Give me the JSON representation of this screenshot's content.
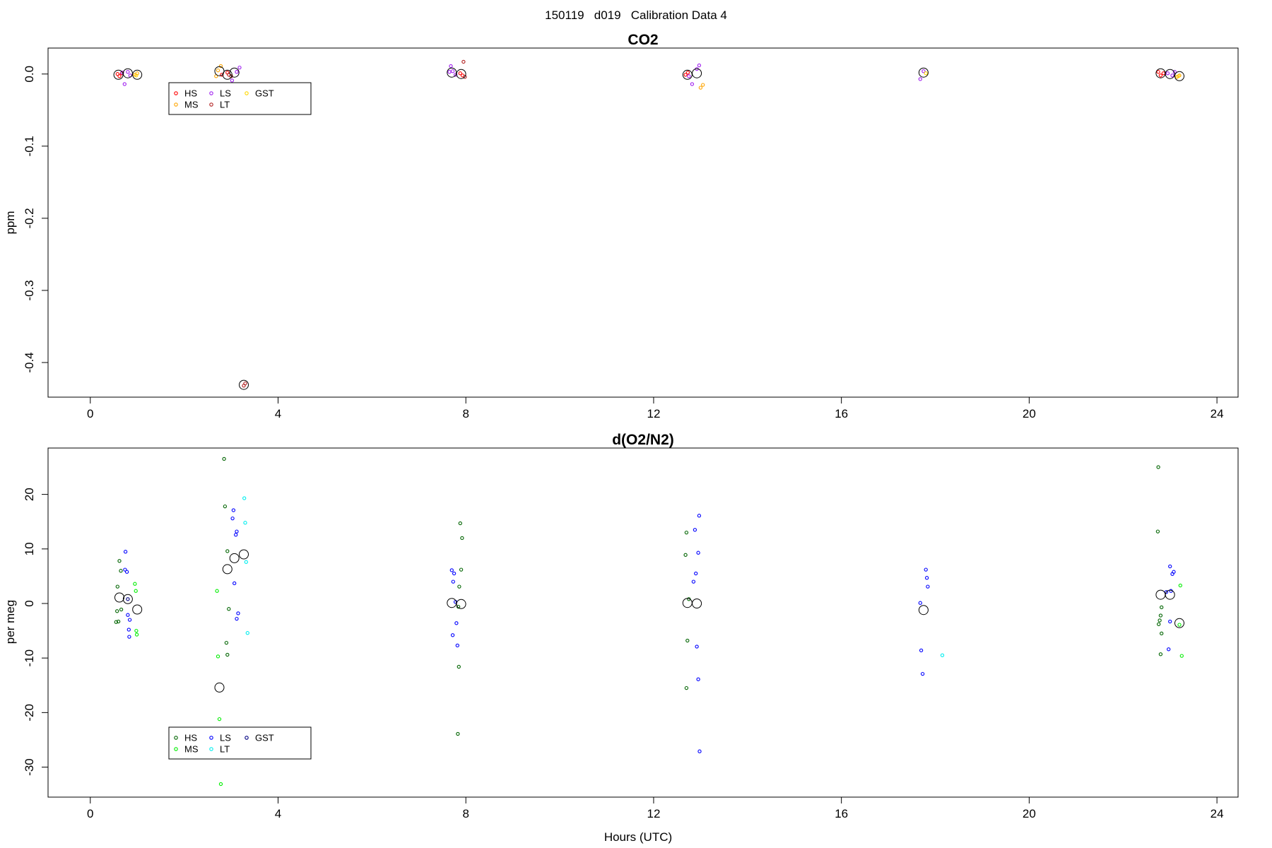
{
  "figure": {
    "suptitle": "150119   d019   Calibration Data 4",
    "xlabel": "Hours (UTC)"
  },
  "colors": {
    "HS_co2": "#ff0000",
    "MS_co2": "#ffa500",
    "LS_co2": "#a020f0",
    "LT_co2": "#b22222",
    "GST_co2": "#ffd700",
    "HS_o2": "#006400",
    "MS_o2": "#00ee00",
    "LS_o2": "#0000ff",
    "LT_o2": "#00eeee",
    "GST_o2": "#000080",
    "mean_marker": "#000000"
  },
  "chart_data": [
    {
      "type": "scatter",
      "title": "CO2",
      "xlabel": "",
      "ylabel": "ppm",
      "xlim": [
        -0.9,
        24.45
      ],
      "ylim": [
        -0.448,
        0.036
      ],
      "xticks": [
        0,
        4,
        8,
        12,
        16,
        20,
        24
      ],
      "yticks": [
        0.0,
        -0.1,
        -0.2,
        -0.3,
        -0.4
      ],
      "ytick_labels": [
        "0.0",
        "-0.1",
        "-0.2",
        "-0.3",
        "-0.4"
      ],
      "grid": false,
      "legend": {
        "position": "top-left",
        "entries": [
          "HS",
          "MS",
          "LS",
          "LT",
          "GST"
        ]
      },
      "series": [
        {
          "name": "HS",
          "points": [
            [
              0.58,
              0.0
            ],
            [
              0.62,
              -0.003
            ],
            [
              0.67,
              0.001
            ],
            [
              2.8,
              -0.001
            ],
            [
              2.92,
              0.002
            ],
            [
              7.88,
              0.001
            ],
            [
              7.93,
              -0.002
            ],
            [
              12.68,
              -0.001
            ],
            [
              12.73,
              0.002
            ],
            [
              22.75,
              0.003
            ],
            [
              22.8,
              -0.002
            ],
            [
              22.86,
              0.001
            ]
          ]
        },
        {
          "name": "MS",
          "points": [
            [
              0.95,
              -0.001
            ],
            [
              1.0,
              0.001
            ],
            [
              2.68,
              -0.003
            ],
            [
              2.72,
              0.005
            ],
            [
              2.78,
              0.011
            ],
            [
              13.0,
              -0.019
            ],
            [
              13.05,
              -0.015
            ],
            [
              23.15,
              -0.004
            ],
            [
              23.2,
              -0.002
            ]
          ]
        },
        {
          "name": "LS",
          "points": [
            [
              0.68,
              0.002
            ],
            [
              0.73,
              -0.014
            ],
            [
              0.8,
              0.003
            ],
            [
              0.85,
              -0.002
            ],
            [
              3.02,
              -0.009
            ],
            [
              3.12,
              0.003
            ],
            [
              3.18,
              0.009
            ],
            [
              7.65,
              0.003
            ],
            [
              7.68,
              0.011
            ],
            [
              7.72,
              0.004
            ],
            [
              7.78,
              -0.001
            ],
            [
              12.75,
              -0.003
            ],
            [
              12.82,
              -0.014
            ],
            [
              12.92,
              0.007
            ],
            [
              12.97,
              0.012
            ],
            [
              17.68,
              -0.007
            ],
            [
              17.75,
              0.004
            ],
            [
              22.95,
              0.001
            ],
            [
              23.05,
              -0.002
            ],
            [
              23.1,
              0.003
            ]
          ]
        },
        {
          "name": "LT",
          "points": [
            [
              2.95,
              -0.001
            ],
            [
              3.0,
              -0.003
            ],
            [
              3.27,
              -0.432
            ],
            [
              3.3,
              -0.429
            ],
            [
              7.95,
              0.017
            ],
            [
              7.98,
              -0.004
            ]
          ]
        },
        {
          "name": "GST",
          "points": [
            [
              0.98,
              -0.002
            ],
            [
              17.8,
              0.001
            ],
            [
              23.18,
              -0.003
            ]
          ]
        },
        {
          "name": "",
          "kind": "mean",
          "points": [
            [
              0.6,
              -0.001
            ],
            [
              0.8,
              0.001
            ],
            [
              1.0,
              -0.001
            ],
            [
              2.75,
              0.004
            ],
            [
              2.92,
              -0.001
            ],
            [
              3.07,
              0.002
            ],
            [
              3.27,
              -0.431
            ],
            [
              7.7,
              0.002
            ],
            [
              7.9,
              0.0
            ],
            [
              12.72,
              -0.001
            ],
            [
              12.92,
              0.001
            ],
            [
              17.75,
              0.002
            ],
            [
              22.8,
              0.001
            ],
            [
              23.0,
              0.0
            ],
            [
              23.2,
              -0.003
            ]
          ]
        }
      ]
    },
    {
      "type": "scatter",
      "title": "d(O2/N2)",
      "xlabel": "Hours (UTC)",
      "ylabel": "per meg",
      "xlim": [
        -0.9,
        24.45
      ],
      "ylim": [
        -35.5,
        28.5
      ],
      "xticks": [
        0,
        4,
        8,
        12,
        16,
        20,
        24
      ],
      "yticks": [
        20,
        10,
        0,
        -10,
        -20,
        -30
      ],
      "ytick_labels": [
        "20",
        "10",
        "0",
        "-10",
        "-20",
        "-30"
      ],
      "grid": false,
      "legend": {
        "position": "bottom-left",
        "entries": [
          "HS",
          "MS",
          "LS",
          "LT",
          "GST"
        ]
      },
      "series": [
        {
          "name": "HS",
          "points": [
            [
              0.58,
              3.1
            ],
            [
              0.62,
              7.8
            ],
            [
              0.65,
              6.0
            ],
            [
              0.57,
              -1.4
            ],
            [
              0.6,
              -3.3
            ],
            [
              0.66,
              -1.1
            ],
            [
              0.55,
              -3.4
            ],
            [
              2.85,
              26.5
            ],
            [
              2.87,
              17.8
            ],
            [
              2.92,
              9.6
            ],
            [
              2.95,
              -1.0
            ],
            [
              2.9,
              -7.2
            ],
            [
              2.92,
              -9.4
            ],
            [
              7.88,
              14.7
            ],
            [
              7.92,
              12.0
            ],
            [
              7.9,
              6.2
            ],
            [
              7.86,
              3.1
            ],
            [
              7.84,
              -0.6
            ],
            [
              7.85,
              -11.6
            ],
            [
              7.83,
              -23.9
            ],
            [
              12.7,
              13.0
            ],
            [
              12.68,
              8.9
            ],
            [
              12.75,
              0.8
            ],
            [
              12.72,
              -6.8
            ],
            [
              12.7,
              -15.5
            ],
            [
              22.75,
              25.0
            ],
            [
              22.74,
              13.2
            ],
            [
              22.82,
              -0.7
            ],
            [
              22.8,
              -2.2
            ],
            [
              22.78,
              -3.1
            ],
            [
              22.76,
              -3.8
            ],
            [
              22.82,
              -5.5
            ],
            [
              22.8,
              -9.3
            ]
          ]
        },
        {
          "name": "MS",
          "points": [
            [
              0.95,
              3.6
            ],
            [
              0.97,
              2.3
            ],
            [
              0.98,
              -5.0
            ],
            [
              0.99,
              -5.7
            ],
            [
              2.7,
              2.3
            ],
            [
              2.72,
              -9.7
            ],
            [
              2.75,
              -21.2
            ],
            [
              2.78,
              -33.1
            ],
            [
              23.22,
              3.3
            ],
            [
              23.25,
              -9.6
            ],
            [
              23.2,
              -3.9
            ]
          ]
        },
        {
          "name": "LS",
          "points": [
            [
              0.75,
              9.5
            ],
            [
              0.74,
              6.2
            ],
            [
              0.78,
              5.8
            ],
            [
              0.8,
              -2.1
            ],
            [
              0.84,
              -3.0
            ],
            [
              0.82,
              -4.8
            ],
            [
              0.83,
              -6.1
            ],
            [
              3.05,
              17.1
            ],
            [
              3.03,
              15.6
            ],
            [
              3.12,
              13.2
            ],
            [
              3.1,
              12.6
            ],
            [
              3.07,
              3.7
            ],
            [
              3.15,
              -1.8
            ],
            [
              3.12,
              -2.8
            ],
            [
              7.7,
              6.1
            ],
            [
              7.75,
              5.5
            ],
            [
              7.73,
              4.0
            ],
            [
              7.78,
              0.3
            ],
            [
              7.8,
              -3.6
            ],
            [
              7.72,
              -5.8
            ],
            [
              7.82,
              -7.7
            ],
            [
              12.88,
              13.5
            ],
            [
              12.97,
              16.1
            ],
            [
              12.95,
              9.3
            ],
            [
              12.9,
              5.5
            ],
            [
              12.85,
              4.0
            ],
            [
              12.92,
              -7.9
            ],
            [
              12.95,
              -13.9
            ],
            [
              12.98,
              -27.1
            ],
            [
              17.68,
              0.1
            ],
            [
              17.8,
              6.2
            ],
            [
              17.82,
              4.7
            ],
            [
              17.84,
              3.1
            ],
            [
              17.7,
              -8.6
            ],
            [
              17.73,
              -12.9
            ],
            [
              22.92,
              2.1
            ],
            [
              23.0,
              6.8
            ],
            [
              23.05,
              5.4
            ],
            [
              23.08,
              5.8
            ],
            [
              23.02,
              2.3
            ],
            [
              23.0,
              -3.3
            ],
            [
              22.97,
              -8.4
            ]
          ]
        },
        {
          "name": "LT",
          "points": [
            [
              3.28,
              19.3
            ],
            [
              3.3,
              14.8
            ],
            [
              3.32,
              7.6
            ],
            [
              3.35,
              -5.4
            ],
            [
              18.15,
              -9.5
            ]
          ]
        },
        {
          "name": "GST",
          "points": [
            [
              0.8,
              0.8
            ]
          ]
        },
        {
          "name": "",
          "kind": "mean",
          "points": [
            [
              0.62,
              1.1
            ],
            [
              0.8,
              0.8
            ],
            [
              1.0,
              -1.1
            ],
            [
              2.75,
              -15.4
            ],
            [
              2.92,
              6.3
            ],
            [
              3.07,
              8.3
            ],
            [
              3.27,
              9.0
            ],
            [
              7.7,
              0.1
            ],
            [
              7.9,
              -0.1
            ],
            [
              12.72,
              0.1
            ],
            [
              12.92,
              0.0
            ],
            [
              17.75,
              -1.2
            ],
            [
              22.8,
              1.6
            ],
            [
              23.0,
              1.6
            ],
            [
              23.2,
              -3.6
            ]
          ]
        }
      ]
    }
  ]
}
